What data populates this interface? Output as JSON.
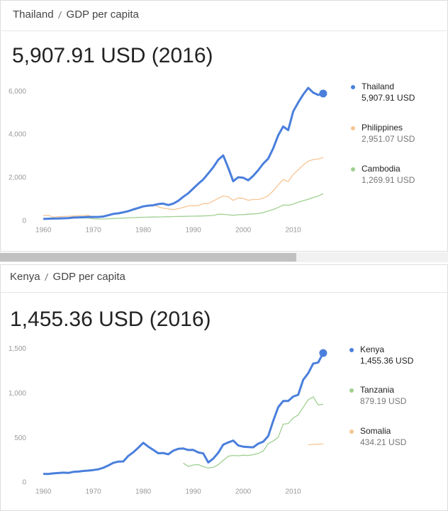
{
  "chart_data": [
    {
      "type": "line",
      "breadcrumb": {
        "country": "Thailand",
        "indicator": "GDP per capita"
      },
      "title": "5,907.91 USD (2016)",
      "x": [
        1960,
        1961,
        1962,
        1963,
        1964,
        1965,
        1966,
        1967,
        1968,
        1969,
        1970,
        1971,
        1972,
        1973,
        1974,
        1975,
        1976,
        1977,
        1978,
        1979,
        1980,
        1981,
        1982,
        1983,
        1984,
        1985,
        1986,
        1987,
        1988,
        1989,
        1990,
        1991,
        1992,
        1993,
        1994,
        1995,
        1996,
        1997,
        1998,
        1999,
        2000,
        2001,
        2002,
        2003,
        2004,
        2005,
        2006,
        2007,
        2008,
        2009,
        2010,
        2011,
        2012,
        2013,
        2014,
        2015,
        2016
      ],
      "xlim": [
        1957,
        2018
      ],
      "xticks": [
        1960,
        1970,
        1980,
        1990,
        2000,
        2010
      ],
      "ylim": [
        0,
        6300
      ],
      "yticks": [
        0,
        {
          "value": 2000,
          "label": "2,000"
        },
        {
          "value": 4000,
          "label": "4,000"
        },
        {
          "value": 6000,
          "label": "6,000"
        }
      ],
      "grid": false,
      "series": [
        {
          "name": "Thailand",
          "color": "#4a7fdc",
          "legend_value": "5,907.91 USD",
          "values": [
            101,
            110,
            118,
            123,
            132,
            142,
            163,
            171,
            181,
            193,
            192,
            193,
            213,
            271,
            335,
            361,
            407,
            463,
            541,
            610,
            683,
            718,
            735,
            792,
            812,
            744,
            809,
            943,
            1125,
            1289,
            1508,
            1730,
            1928,
            2209,
            2491,
            2842,
            3043,
            2467,
            1846,
            2032,
            2008,
            1890,
            2096,
            2359,
            2660,
            2894,
            3369,
            3974,
            4380,
            4213,
            5076,
            5492,
            5861,
            6168,
            5952,
            5840,
            5907.91
          ]
        },
        {
          "name": "Philippines",
          "color": "#f6c593",
          "legend_value": "2,951.07 USD",
          "values": [
            254,
            268,
            180,
            207,
            216,
            225,
            236,
            249,
            263,
            270,
            187,
            203,
            209,
            259,
            343,
            364,
            403,
            447,
            505,
            595,
            685,
            737,
            755,
            660,
            597,
            571,
            533,
            578,
            637,
            702,
            715,
            720,
            812,
            815,
            931,
            1054,
            1160,
            1128,
            958,
            1072,
            1055,
            964,
            1000,
            1001,
            1062,
            1177,
            1402,
            1680,
            1933,
            1833,
            2155,
            2379,
            2594,
            2774,
            2852,
            2874,
            2951.07
          ]
        },
        {
          "name": "Cambodia",
          "color": "#9fd08f",
          "legend_value": "1,269.91 USD",
          "values": [
            111,
            117,
            120,
            128,
            130,
            133,
            143,
            143,
            148,
            146,
            110,
            100,
            95,
            110,
            120,
            130,
            140,
            150,
            160,
            170,
            180,
            185,
            190,
            195,
            200,
            205,
            210,
            215,
            220,
            225,
            230,
            235,
            240,
            249,
            262,
            318,
            316,
            296,
            270,
            295,
            302,
            320,
            334,
            350,
            393,
            469,
            538,
            632,
            746,
            738,
            783,
            879,
            946,
            1013,
            1093,
            1163,
            1269.91
          ]
        }
      ]
    },
    {
      "type": "line",
      "breadcrumb": {
        "country": "Kenya",
        "indicator": "GDP per capita"
      },
      "title": "1,455.36 USD (2016)",
      "x": [
        1960,
        1961,
        1962,
        1963,
        1964,
        1965,
        1966,
        1967,
        1968,
        1969,
        1970,
        1971,
        1972,
        1973,
        1974,
        1975,
        1976,
        1977,
        1978,
        1979,
        1980,
        1981,
        1982,
        1983,
        1984,
        1985,
        1986,
        1987,
        1988,
        1989,
        1990,
        1991,
        1992,
        1993,
        1994,
        1995,
        1996,
        1997,
        1998,
        1999,
        2000,
        2001,
        2002,
        2003,
        2004,
        2005,
        2006,
        2007,
        2008,
        2009,
        2010,
        2011,
        2012,
        2013,
        2014,
        2015,
        2016
      ],
      "xlim": [
        1957,
        2018
      ],
      "xticks": [
        1960,
        1970,
        1980,
        1990,
        2000,
        2010
      ],
      "ylim": [
        0,
        1560
      ],
      "yticks": [
        0,
        500,
        {
          "value": 1000,
          "label": "1,000"
        },
        {
          "value": 1500,
          "label": "1,500"
        }
      ],
      "grid": false,
      "series": [
        {
          "name": "Kenya",
          "color": "#4a7fdc",
          "legend_value": "1,455.36 USD",
          "values": [
            99,
            98,
            104,
            108,
            112,
            109,
            121,
            124,
            131,
            135,
            142,
            150,
            167,
            193,
            222,
            236,
            238,
            300,
            341,
            392,
            447,
            404,
            368,
            330,
            333,
            318,
            359,
            380,
            384,
            367,
            368,
            339,
            329,
            227,
            270,
            336,
            427,
            451,
            473,
            417,
            404,
            400,
            397,
            438,
            460,
            523,
            693,
            848,
            917,
            918,
            967,
            987,
            1155,
            1229,
            1336,
            1350,
            1455.36
          ]
        },
        {
          "name": "Tanzania",
          "color": "#9fd08f",
          "legend_value": "879.19 USD",
          "values": [
            null,
            null,
            null,
            null,
            null,
            null,
            null,
            null,
            null,
            null,
            null,
            null,
            null,
            null,
            null,
            null,
            null,
            null,
            null,
            null,
            null,
            null,
            null,
            null,
            null,
            null,
            null,
            null,
            220,
            182,
            199,
            203,
            180,
            164,
            172,
            202,
            250,
            297,
            306,
            302,
            308,
            305,
            314,
            328,
            354,
            439,
            467,
            511,
            657,
            664,
            726,
            761,
            845,
            932,
            964,
            873,
            879.19
          ]
        },
        {
          "name": "Somalia",
          "color": "#f6c593",
          "legend_value": "434.21 USD",
          "values": [
            null,
            null,
            null,
            null,
            null,
            null,
            null,
            null,
            null,
            null,
            null,
            null,
            null,
            null,
            null,
            null,
            null,
            null,
            null,
            null,
            null,
            null,
            null,
            null,
            null,
            null,
            null,
            null,
            null,
            null,
            null,
            null,
            null,
            null,
            null,
            null,
            null,
            null,
            null,
            null,
            null,
            null,
            null,
            null,
            null,
            null,
            null,
            null,
            null,
            null,
            null,
            null,
            null,
            425,
            430,
            432,
            434.21
          ]
        }
      ]
    }
  ]
}
